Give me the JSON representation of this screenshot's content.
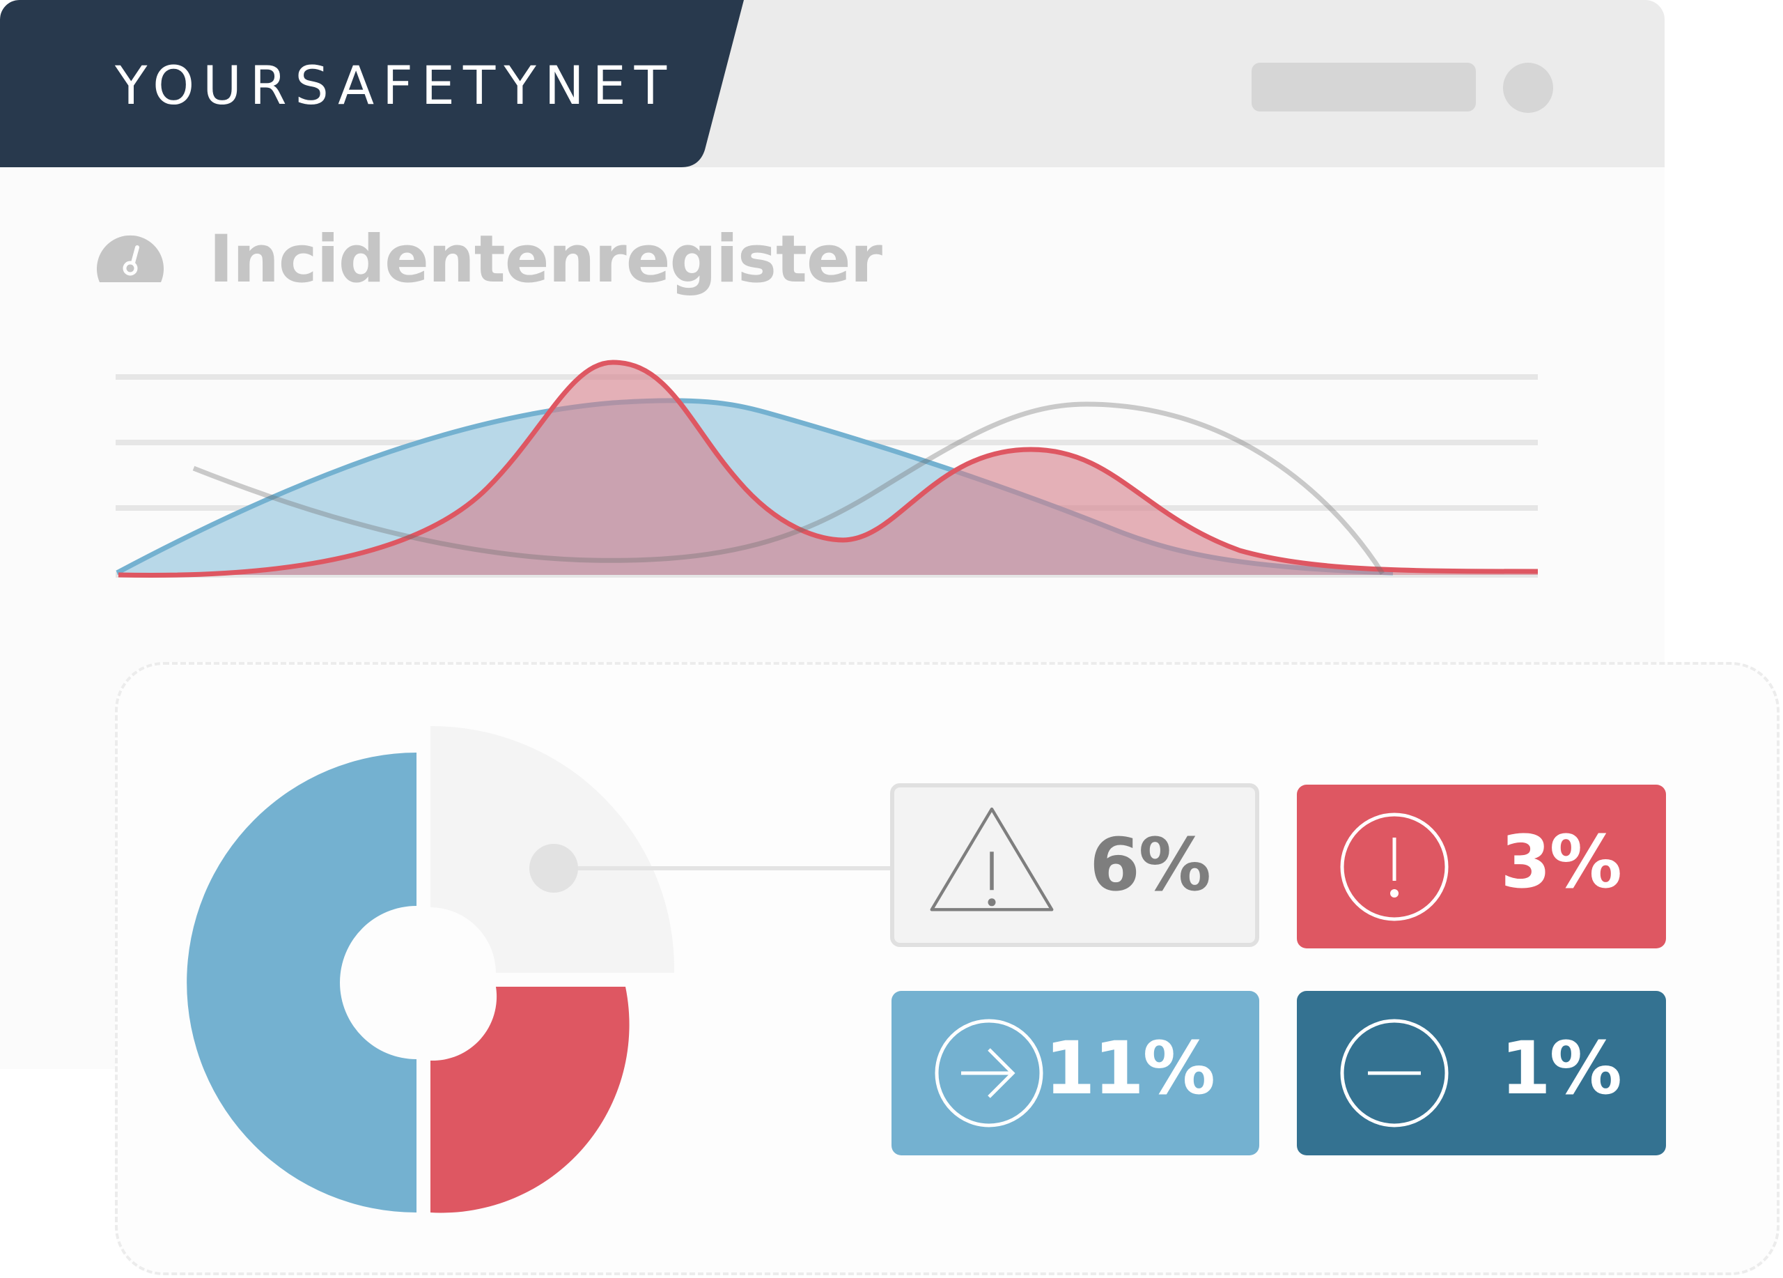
{
  "header": {
    "brand": "YOURSAFETYNET"
  },
  "page": {
    "title": "Incidentenregister"
  },
  "colors": {
    "navy": "#28394d",
    "red": "#de5762",
    "light_blue": "#74b1d0",
    "dark_blue": "#347291",
    "gray": "#7e7e7e"
  },
  "stats": [
    {
      "value": "6%",
      "icon": "warning-triangle-icon"
    },
    {
      "value": "3%",
      "icon": "exclamation-circle-icon"
    },
    {
      "value": "11%",
      "icon": "arrow-right-circle-icon"
    },
    {
      "value": "1%",
      "icon": "minus-circle-icon"
    }
  ]
}
